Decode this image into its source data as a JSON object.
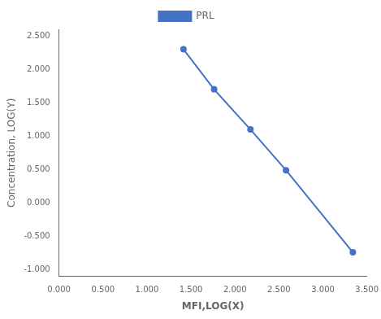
{
  "chart_data": {
    "type": "line",
    "x_label": "MFI,LOG(X)",
    "y_label": "Concentration, LOG(Y)",
    "x": [
      1.415,
      1.763,
      2.176,
      2.58,
      3.34
    ],
    "series": [
      {
        "name": "PRL",
        "color": "#4472C4",
        "marker": "circle",
        "line_style": "solid",
        "values": [
          2.3,
          1.7,
          1.1,
          0.49,
          -0.74
        ]
      }
    ],
    "xlim": [
      0.0,
      3.5
    ],
    "ylim": [
      -1.1,
      2.6
    ],
    "xticks": [
      {
        "value": 0.0,
        "label": "0.000"
      },
      {
        "value": 0.5,
        "label": "0.500"
      },
      {
        "value": 1.0,
        "label": "1.000"
      },
      {
        "value": 1.5,
        "label": "1.500"
      },
      {
        "value": 2.0,
        "label": "2.000"
      },
      {
        "value": 2.5,
        "label": "2.500"
      },
      {
        "value": 3.0,
        "label": "3.000"
      },
      {
        "value": 3.5,
        "label": "3.500"
      }
    ],
    "yticks": [
      {
        "value": -1.0,
        "label": "-1.000"
      },
      {
        "value": -0.5,
        "label": "-0.500"
      },
      {
        "value": 0.0,
        "label": "0.000"
      },
      {
        "value": 0.5,
        "label": "0.500"
      },
      {
        "value": 1.0,
        "label": "1.000"
      },
      {
        "value": 1.5,
        "label": "1.500"
      },
      {
        "value": 2.0,
        "label": "2.000"
      },
      {
        "value": 2.5,
        "label": "2.500"
      }
    ],
    "grid": false,
    "legend": "top"
  }
}
